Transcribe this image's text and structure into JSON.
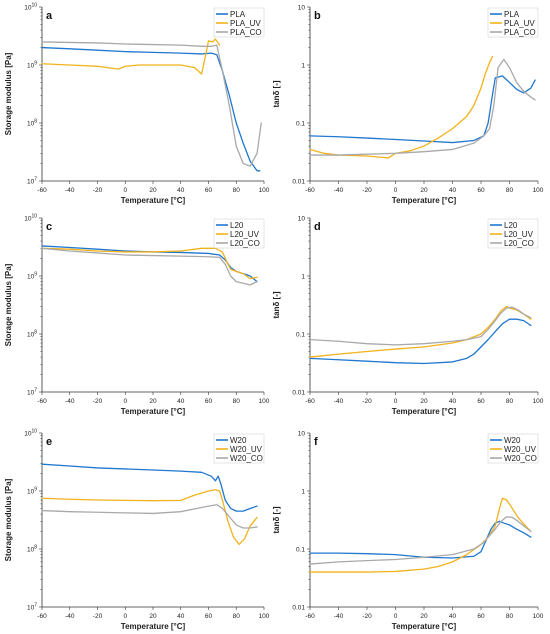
{
  "colors": {
    "series1": "#1f77d0",
    "series2": "#f2b21c",
    "series3": "#a9a9a9"
  },
  "chart_data": [
    {
      "panel": "a",
      "type": "line",
      "yscale": "log",
      "xlabel": "Temperature [°C]",
      "ylabel": "Storage modulus [Pa]",
      "xlim": [
        -60,
        100
      ],
      "ylim": [
        10000000.0,
        10000000000.0
      ],
      "xticks": [
        "-60",
        "-40",
        "-20",
        "0",
        "20",
        "40",
        "60",
        "80",
        "100"
      ],
      "yticks": [
        {
          "base": "10",
          "exp": "7"
        },
        {
          "base": "10",
          "exp": "8"
        },
        {
          "base": "10",
          "exp": "9"
        },
        {
          "base": "10",
          "exp": "10"
        }
      ],
      "legend_position": "top-right",
      "series": [
        {
          "name": "PLA",
          "x": [
            -60,
            -40,
            -20,
            0,
            20,
            40,
            55,
            62,
            66,
            70,
            75,
            80,
            85,
            90,
            95,
            97
          ],
          "y": [
            2000000000.0,
            1900000000.0,
            1800000000.0,
            1700000000.0,
            1650000000.0,
            1600000000.0,
            1550000000.0,
            1600000000.0,
            1500000000.0,
            800000000.0,
            300000000.0,
            100000000.0,
            45000000.0,
            22000000.0,
            15000000.0,
            15000000.0
          ]
        },
        {
          "name": "PLA_UV",
          "x": [
            -60,
            -40,
            -20,
            -5,
            0,
            10,
            20,
            40,
            50,
            55,
            58,
            60,
            63,
            65,
            68
          ],
          "y": [
            1050000000.0,
            1000000000.0,
            950000000.0,
            850000000.0,
            950000000.0,
            1000000000.0,
            1000000000.0,
            1000000000.0,
            900000000.0,
            700000000.0,
            1500000000.0,
            2600000000.0,
            2500000000.0,
            2800000000.0,
            2200000000.0
          ]
        },
        {
          "name": "PLA_CO",
          "x": [
            -60,
            -40,
            -20,
            0,
            20,
            40,
            55,
            62,
            66,
            70,
            75,
            80,
            85,
            90,
            95,
            98
          ],
          "y": [
            2500000000.0,
            2450000000.0,
            2400000000.0,
            2300000000.0,
            2250000000.0,
            2200000000.0,
            2100000000.0,
            2100000000.0,
            2200000000.0,
            800000000.0,
            200000000.0,
            40000000.0,
            20000000.0,
            18000000.0,
            30000000.0,
            100000000.0
          ]
        }
      ]
    },
    {
      "panel": "b",
      "type": "line",
      "yscale": "log",
      "xlabel": "Temperature [°C]",
      "ylabel": "tanδ [-]",
      "xlim": [
        -60,
        100
      ],
      "ylim": [
        0.01,
        10
      ],
      "xticks": [
        "-60",
        "-40",
        "-20",
        "0",
        "20",
        "40",
        "60",
        "80",
        "100"
      ],
      "yticks": [
        {
          "base": "0.01",
          "exp": ""
        },
        {
          "base": "0.1",
          "exp": ""
        },
        {
          "base": "1",
          "exp": ""
        },
        {
          "base": "10",
          "exp": ""
        }
      ],
      "legend_position": "top-right",
      "series": [
        {
          "name": "PLA",
          "x": [
            -60,
            -40,
            -20,
            0,
            20,
            40,
            55,
            62,
            65,
            68,
            70,
            75,
            80,
            85,
            90,
            95,
            98
          ],
          "y": [
            0.06,
            0.058,
            0.055,
            0.052,
            0.049,
            0.046,
            0.05,
            0.06,
            0.1,
            0.3,
            0.6,
            0.65,
            0.5,
            0.38,
            0.33,
            0.4,
            0.55
          ]
        },
        {
          "name": "PLA_UV",
          "x": [
            -60,
            -50,
            -40,
            -20,
            -5,
            0,
            10,
            20,
            30,
            40,
            50,
            55,
            60,
            63,
            66,
            68
          ],
          "y": [
            0.035,
            0.03,
            0.028,
            0.027,
            0.025,
            0.03,
            0.033,
            0.04,
            0.055,
            0.08,
            0.13,
            0.2,
            0.4,
            0.7,
            1.1,
            1.4
          ]
        },
        {
          "name": "PLA_CO",
          "x": [
            -60,
            -40,
            -20,
            0,
            20,
            40,
            55,
            62,
            66,
            69,
            72,
            76,
            80,
            85,
            90,
            95,
            98
          ],
          "y": [
            0.028,
            0.028,
            0.029,
            0.03,
            0.032,
            0.035,
            0.045,
            0.06,
            0.08,
            0.2,
            0.9,
            1.25,
            0.9,
            0.5,
            0.35,
            0.28,
            0.25
          ]
        }
      ]
    },
    {
      "panel": "c",
      "type": "line",
      "yscale": "log",
      "xlabel": "Temperature [°C]",
      "ylabel": "Storage modulus [Pa]",
      "xlim": [
        -60,
        100
      ],
      "ylim": [
        10000000.0,
        10000000000.0
      ],
      "xticks": [
        "-60",
        "-40",
        "-20",
        "0",
        "20",
        "40",
        "60",
        "80",
        "100"
      ],
      "yticks": [
        {
          "base": "10",
          "exp": "7"
        },
        {
          "base": "10",
          "exp": "8"
        },
        {
          "base": "10",
          "exp": "9"
        },
        {
          "base": "10",
          "exp": "10"
        }
      ],
      "legend_position": "top-right",
      "series": [
        {
          "name": "L20",
          "x": [
            -60,
            -40,
            -20,
            0,
            20,
            40,
            60,
            68,
            72,
            76,
            80,
            85,
            90,
            95
          ],
          "y": [
            3300000000.0,
            3100000000.0,
            2900000000.0,
            2700000000.0,
            2600000000.0,
            2550000000.0,
            2450000000.0,
            2300000000.0,
            1900000000.0,
            1400000000.0,
            1200000000.0,
            1100000000.0,
            1000000000.0,
            800000000.0
          ]
        },
        {
          "name": "L20_UV",
          "x": [
            -60,
            -40,
            -20,
            0,
            20,
            40,
            55,
            65,
            70,
            73,
            76,
            80,
            85,
            90,
            95
          ],
          "y": [
            3000000000.0,
            2900000000.0,
            2700000000.0,
            2600000000.0,
            2600000000.0,
            2700000000.0,
            3000000000.0,
            3000000000.0,
            2600000000.0,
            1800000000.0,
            1300000000.0,
            1200000000.0,
            1100000000.0,
            900000000.0,
            950000000.0
          ]
        },
        {
          "name": "L20_CO",
          "x": [
            -60,
            -40,
            -20,
            0,
            20,
            40,
            60,
            68,
            72,
            76,
            80,
            85,
            90,
            95
          ],
          "y": [
            3000000000.0,
            2700000000.0,
            2500000000.0,
            2300000000.0,
            2250000000.0,
            2200000000.0,
            2150000000.0,
            2100000000.0,
            1600000000.0,
            1000000000.0,
            800000000.0,
            750000000.0,
            700000000.0,
            800000000.0
          ]
        }
      ]
    },
    {
      "panel": "d",
      "type": "line",
      "yscale": "log",
      "xlabel": "Temperature [°C]",
      "ylabel": "tanδ [-]",
      "xlim": [
        -60,
        100
      ],
      "ylim": [
        0.01,
        10
      ],
      "xticks": [
        "-60",
        "-40",
        "-20",
        "0",
        "20",
        "40",
        "60",
        "80",
        "100"
      ],
      "yticks": [
        {
          "base": "0.01",
          "exp": ""
        },
        {
          "base": "0.1",
          "exp": ""
        },
        {
          "base": "1",
          "exp": ""
        },
        {
          "base": "10",
          "exp": ""
        }
      ],
      "legend_position": "top-right",
      "series": [
        {
          "name": "L20",
          "x": [
            -60,
            -40,
            -20,
            0,
            20,
            40,
            50,
            55,
            60,
            65,
            70,
            75,
            80,
            85,
            90,
            95
          ],
          "y": [
            0.038,
            0.036,
            0.034,
            0.032,
            0.031,
            0.033,
            0.038,
            0.045,
            0.06,
            0.08,
            0.11,
            0.15,
            0.18,
            0.18,
            0.17,
            0.14
          ]
        },
        {
          "name": "L20_UV",
          "x": [
            -60,
            -40,
            -20,
            0,
            20,
            40,
            50,
            60,
            65,
            70,
            74,
            78,
            80,
            85,
            90,
            95
          ],
          "y": [
            0.04,
            0.045,
            0.05,
            0.055,
            0.06,
            0.07,
            0.08,
            0.1,
            0.13,
            0.18,
            0.25,
            0.3,
            0.28,
            0.26,
            0.22,
            0.18
          ]
        },
        {
          "name": "L20_CO",
          "x": [
            -60,
            -40,
            -20,
            0,
            20,
            40,
            50,
            60,
            65,
            70,
            74,
            78,
            82,
            86,
            90,
            95
          ],
          "y": [
            0.08,
            0.075,
            0.068,
            0.065,
            0.068,
            0.075,
            0.08,
            0.09,
            0.12,
            0.17,
            0.23,
            0.28,
            0.29,
            0.26,
            0.22,
            0.19
          ]
        }
      ]
    },
    {
      "panel": "e",
      "type": "line",
      "yscale": "log",
      "xlabel": "Temperature [°C]",
      "ylabel": "Storage modulus [Pa]",
      "xlim": [
        -60,
        100
      ],
      "ylim": [
        10000000.0,
        10000000000.0
      ],
      "xticks": [
        "-60",
        "-40",
        "-20",
        "0",
        "20",
        "40",
        "60",
        "80",
        "100"
      ],
      "yticks": [
        {
          "base": "10",
          "exp": "7"
        },
        {
          "base": "10",
          "exp": "8"
        },
        {
          "base": "10",
          "exp": "9"
        },
        {
          "base": "10",
          "exp": "10"
        }
      ],
      "legend_position": "top-right",
      "series": [
        {
          "name": "W20",
          "x": [
            -60,
            -40,
            -20,
            0,
            20,
            40,
            55,
            62,
            65,
            67,
            69,
            72,
            76,
            80,
            85,
            90,
            95
          ],
          "y": [
            2900000000.0,
            2700000000.0,
            2500000000.0,
            2400000000.0,
            2300000000.0,
            2200000000.0,
            2100000000.0,
            1800000000.0,
            1500000000.0,
            1800000000.0,
            1300000000.0,
            700000000.0,
            500000000.0,
            450000000.0,
            450000000.0,
            500000000.0,
            550000000.0
          ]
        },
        {
          "name": "W20_UV",
          "x": [
            -60,
            -40,
            -20,
            0,
            20,
            40,
            50,
            60,
            65,
            68,
            70,
            74,
            78,
            82,
            86,
            90,
            95
          ],
          "y": [
            750000000.0,
            720000000.0,
            700000000.0,
            690000000.0,
            680000000.0,
            690000000.0,
            850000000.0,
            1000000000.0,
            1050000000.0,
            1000000000.0,
            700000000.0,
            300000000.0,
            160000000.0,
            120000000.0,
            150000000.0,
            250000000.0,
            350000000.0
          ]
        },
        {
          "name": "W20_CO",
          "x": [
            -60,
            -40,
            -20,
            0,
            20,
            40,
            55,
            62,
            66,
            70,
            75,
            80,
            85,
            90,
            95
          ],
          "y": [
            460000000.0,
            440000000.0,
            430000000.0,
            420000000.0,
            410000000.0,
            440000000.0,
            520000000.0,
            560000000.0,
            580000000.0,
            500000000.0,
            360000000.0,
            260000000.0,
            230000000.0,
            230000000.0,
            240000000.0
          ]
        }
      ]
    },
    {
      "panel": "f",
      "type": "line",
      "yscale": "log",
      "xlabel": "Temperature [°C]",
      "ylabel": "tanδ [-]",
      "xlim": [
        -60,
        100
      ],
      "ylim": [
        0.01,
        10
      ],
      "xticks": [
        "-60",
        "-40",
        "-20",
        "0",
        "20",
        "40",
        "60",
        "80",
        "100"
      ],
      "yticks": [
        {
          "base": "0.01",
          "exp": ""
        },
        {
          "base": "0.1",
          "exp": ""
        },
        {
          "base": "1",
          "exp": ""
        },
        {
          "base": "10",
          "exp": ""
        }
      ],
      "legend_position": "top-right",
      "series": [
        {
          "name": "W20",
          "x": [
            -60,
            -40,
            -20,
            0,
            20,
            40,
            55,
            60,
            64,
            67,
            70,
            73,
            76,
            80,
            85,
            90,
            95
          ],
          "y": [
            0.085,
            0.085,
            0.083,
            0.08,
            0.072,
            0.07,
            0.075,
            0.09,
            0.15,
            0.22,
            0.28,
            0.3,
            0.28,
            0.26,
            0.22,
            0.19,
            0.16
          ]
        },
        {
          "name": "W20_UV",
          "x": [
            -60,
            -40,
            -20,
            0,
            20,
            30,
            40,
            50,
            60,
            65,
            70,
            73,
            75,
            78,
            82,
            86,
            90,
            95
          ],
          "y": [
            0.04,
            0.04,
            0.04,
            0.041,
            0.045,
            0.05,
            0.06,
            0.08,
            0.12,
            0.16,
            0.25,
            0.5,
            0.75,
            0.7,
            0.5,
            0.35,
            0.27,
            0.2
          ]
        },
        {
          "name": "W20_CO",
          "x": [
            -60,
            -40,
            -20,
            0,
            20,
            40,
            55,
            62,
            66,
            70,
            74,
            78,
            82,
            86,
            90,
            95
          ],
          "y": [
            0.055,
            0.06,
            0.063,
            0.066,
            0.072,
            0.08,
            0.1,
            0.13,
            0.17,
            0.22,
            0.3,
            0.36,
            0.35,
            0.3,
            0.25,
            0.2
          ]
        }
      ]
    }
  ]
}
